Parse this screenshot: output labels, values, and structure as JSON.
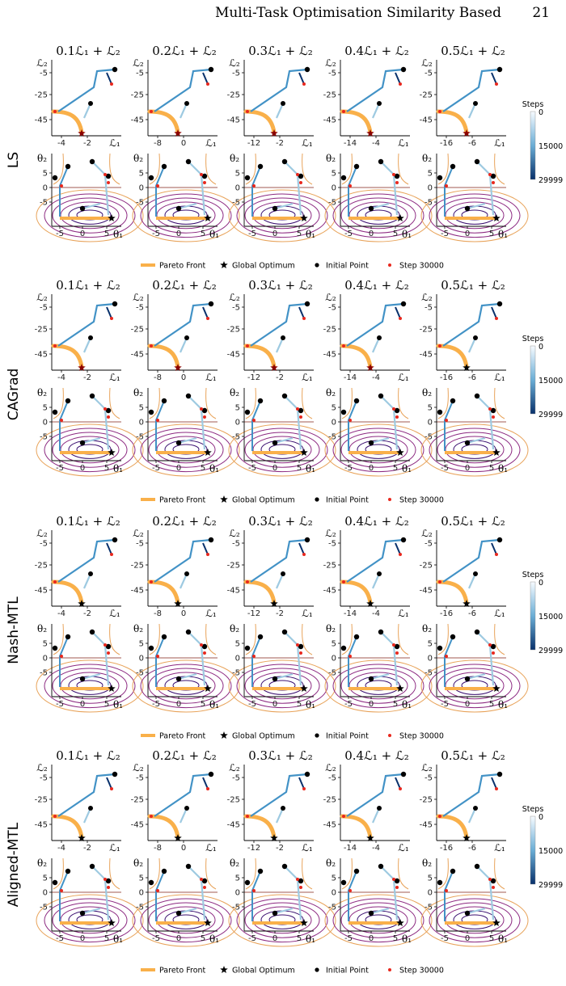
{
  "page": {
    "running_title": "Multi-Task Optimisation Similarity Based",
    "page_number": "21"
  },
  "titles": [
    "0.1ℒ₁ + ℒ₂",
    "0.2ℒ₁ + ℒ₂",
    "0.3ℒ₁ + ℒ₂",
    "0.4ℒ₁ + ℒ₂",
    "0.5ℒ₁ + ℒ₂"
  ],
  "methods": [
    "LS",
    "CAGrad",
    "Nash-MTL",
    "Aligned-MTL"
  ],
  "loss_axes": {
    "ylabel": "ℒ₂",
    "xlabel": "ℒ₁",
    "yticks": [
      "-5",
      "-25",
      "-45"
    ],
    "xticks": [
      [
        "-4",
        "-2"
      ],
      [
        "-8",
        "0"
      ],
      [
        "-12",
        "-2"
      ],
      [
        "-14",
        "-4"
      ],
      [
        "-16",
        "-6"
      ]
    ]
  },
  "param_axes": {
    "ylabel": "θ₂",
    "xlabel": "θ₁",
    "yticks": [
      "5",
      "0",
      "-5"
    ],
    "xticks": [
      "-5",
      "0",
      "5"
    ]
  },
  "legend": {
    "pareto": "Pareto Front",
    "optimum": "Global Optimum",
    "initial": "Initial Point",
    "step": "Step 30000"
  },
  "colorbar": {
    "title": "Steps",
    "top": "0",
    "mid": "15000",
    "bottom": "29999"
  },
  "colors": {
    "pareto": "#f9b04a",
    "traj_light": "#9ecae1",
    "traj_mid": "#4292c6",
    "traj_dark": "#08306b",
    "marker_red": "#e8281e",
    "contour_dark": "#3b0f70",
    "contour_mid": "#8c2981",
    "contour_light": "#e8a35a"
  }
}
